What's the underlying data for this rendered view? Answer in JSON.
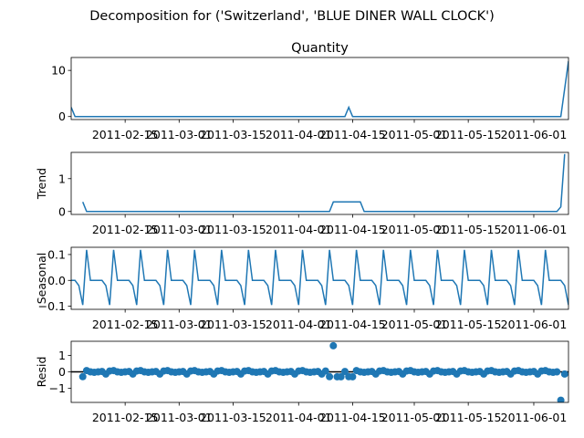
{
  "figure": {
    "suptitle": "Decomposition for ('Switzerland', 'BLUE DINER WALL CLOCK')",
    "line_color": "#1f77b4",
    "ref_line_color": "#000000"
  },
  "chart_data": [
    {
      "type": "line",
      "title": "Quantity",
      "ylabel": "",
      "ylim": [
        -0.65,
        12.8
      ],
      "yticks": [
        "0",
        "10"
      ],
      "yticks_values": [
        0,
        10
      ],
      "xlim": [
        "2011-02-01",
        "2011-06-10"
      ],
      "xticks": [
        "2011-02-15",
        "2011-03-01",
        "2011-03-15",
        "2011-04-01",
        "2011-04-15",
        "2011-05-01",
        "2011-05-15",
        "2011-06-01"
      ],
      "series": [
        {
          "x": [
            "2011-02-01",
            "2011-02-02",
            "2011-04-13",
            "2011-04-14",
            "2011-04-15",
            "2011-06-08",
            "2011-06-10"
          ],
          "y": [
            2,
            0,
            0,
            2,
            0,
            0,
            12
          ]
        }
      ]
    },
    {
      "type": "line",
      "title": "",
      "ylabel": "Trend",
      "ylim": [
        -0.09,
        1.8
      ],
      "yticks": [
        "0",
        "1"
      ],
      "yticks_values": [
        0,
        1
      ],
      "xlim": [
        "2011-02-01",
        "2011-06-10"
      ],
      "xticks": [
        "2011-02-15",
        "2011-03-01",
        "2011-03-15",
        "2011-04-01",
        "2011-04-15",
        "2011-05-01",
        "2011-05-15",
        "2011-06-01"
      ],
      "series": [
        {
          "x": [
            "2011-02-04",
            "2011-02-05",
            "2011-04-09",
            "2011-04-10",
            "2011-04-17",
            "2011-04-18",
            "2011-06-07",
            "2011-06-08",
            "2011-06-09"
          ],
          "y": [
            0.29,
            0,
            0,
            0.29,
            0.29,
            0,
            0,
            0.14,
            1.75
          ]
        }
      ]
    },
    {
      "type": "line",
      "title": "",
      "ylabel": "Seasonal",
      "ylim": [
        -0.112,
        0.128
      ],
      "yticks": [
        "0.1",
        "0.0",
        "−0.1"
      ],
      "yticks_values": [
        0.1,
        0.0,
        -0.1
      ],
      "xlim": [
        "2011-02-01",
        "2011-06-10"
      ],
      "xticks": [
        "2011-02-15",
        "2011-03-01",
        "2011-03-15",
        "2011-04-01",
        "2011-04-15",
        "2011-05-01",
        "2011-05-15",
        "2011-06-01"
      ],
      "period_days": 7,
      "first_day": "2011-02-01",
      "pattern": [
        0.0,
        0.0,
        -0.02,
        -0.095,
        0.118,
        0.0,
        0.0
      ],
      "series": [
        {
          "x_range": [
            "2011-02-01",
            "2011-06-10"
          ]
        }
      ]
    },
    {
      "type": "scatter",
      "title": "",
      "ylabel": "Resid",
      "ylim": [
        -1.85,
        1.85
      ],
      "yticks": [
        "1",
        "0",
        "−1"
      ],
      "yticks_values": [
        1,
        0,
        -1
      ],
      "zero_line": true,
      "xlim": [
        "2011-02-01",
        "2011-06-10"
      ],
      "xticks": [
        "2011-02-15",
        "2011-03-01",
        "2011-03-15",
        "2011-04-01",
        "2011-04-15",
        "2011-05-01",
        "2011-05-15",
        "2011-06-01"
      ],
      "series": [
        {
          "x_range": [
            "2011-02-04",
            "2011-06-09"
          ],
          "baseline_wave": {
            "period_days": 7,
            "pattern": [
              0.0,
              0.02,
              -0.13,
              0.05,
              0.08,
              0.0,
              -0.03
            ]
          },
          "outliers": [
            {
              "x": "2011-02-04",
              "y": -0.29
            },
            {
              "x": "2011-04-09",
              "y": -0.29
            },
            {
              "x": "2011-04-10",
              "y": 1.58
            },
            {
              "x": "2011-04-11",
              "y": -0.3
            },
            {
              "x": "2011-04-12",
              "y": -0.3
            },
            {
              "x": "2011-04-14",
              "y": -0.29
            },
            {
              "x": "2011-04-15",
              "y": -0.3
            },
            {
              "x": "2011-06-08",
              "y": -1.72
            }
          ]
        }
      ]
    }
  ]
}
